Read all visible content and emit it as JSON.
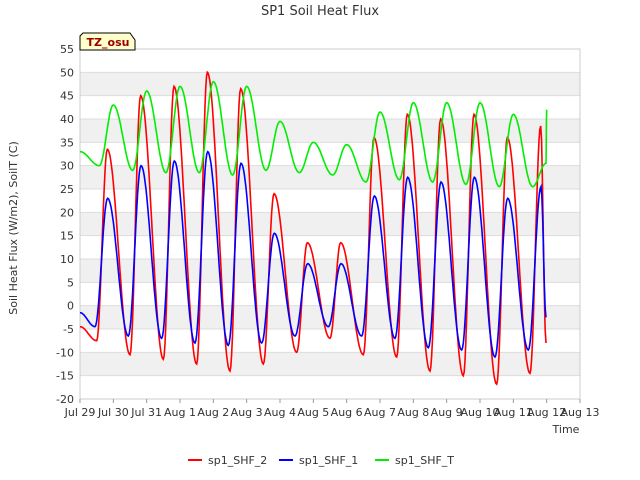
{
  "chart_data": {
    "type": "line",
    "title": "SP1 Soil Heat Flux",
    "xlabel": "Time",
    "ylabel": "Soil Heat Flux (W/m2), SoilT (C)",
    "annotation": "TZ_osu",
    "ylim": [
      -20,
      55
    ],
    "yticks": [
      -20,
      -15,
      -10,
      -5,
      0,
      5,
      10,
      15,
      20,
      25,
      30,
      35,
      40,
      45,
      50,
      55
    ],
    "xlim": [
      0,
      15
    ],
    "xtick_labels": [
      "Jul 29",
      "Jul 30",
      "Jul 31",
      "Aug 1",
      "Aug 2",
      "Aug 3",
      "Aug 4",
      "Aug 5",
      "Aug 6",
      "Aug 7",
      "Aug 8",
      "Aug 9",
      "Aug 10",
      "Aug 11",
      "Aug 12",
      "Aug 13"
    ],
    "grid": true,
    "legend_position": "bottom",
    "series": [
      {
        "name": "sp1_SHF_2",
        "color": "#ff0000",
        "days": [
          {
            "min": -7.5,
            "max": 33.5
          },
          {
            "min": -10.5,
            "max": 45
          },
          {
            "min": -11.5,
            "max": 47
          },
          {
            "min": -12.5,
            "max": 50
          },
          {
            "min": -14,
            "max": 46.5
          },
          {
            "min": -12.5,
            "max": 24
          },
          {
            "min": -10,
            "max": 13.5
          },
          {
            "min": -7,
            "max": 13.5
          },
          {
            "min": -10.5,
            "max": 36
          },
          {
            "min": -11,
            "max": 41
          },
          {
            "min": -14,
            "max": 40
          },
          {
            "min": -15,
            "max": 41
          },
          {
            "min": -16.8,
            "max": 36
          },
          {
            "min": -14.5,
            "max": 38.5
          }
        ],
        "end_value": -8
      },
      {
        "name": "sp1_SHF_1",
        "color": "#0000ff",
        "days": [
          {
            "min": -4.5,
            "max": 23
          },
          {
            "min": -6.5,
            "max": 30
          },
          {
            "min": -7,
            "max": 31
          },
          {
            "min": -8,
            "max": 33
          },
          {
            "min": -8.5,
            "max": 30.5
          },
          {
            "min": -8,
            "max": 15.5
          },
          {
            "min": -6.5,
            "max": 9
          },
          {
            "min": -4.5,
            "max": 9
          },
          {
            "min": -6.5,
            "max": 23.5
          },
          {
            "min": -7,
            "max": 27.5
          },
          {
            "min": -9,
            "max": 26.5
          },
          {
            "min": -9.5,
            "max": 27.5
          },
          {
            "min": -11,
            "max": 23
          },
          {
            "min": -9.5,
            "max": 25.5
          }
        ],
        "end_value": -2.5
      },
      {
        "name": "sp1_SHF_T",
        "color": "#00ee00",
        "days": [
          {
            "min": 30,
            "max": 43
          },
          {
            "min": 29,
            "max": 46
          },
          {
            "min": 28.5,
            "max": 47
          },
          {
            "min": 28.5,
            "max": 48
          },
          {
            "min": 28,
            "max": 47
          },
          {
            "min": 29,
            "max": 39.5
          },
          {
            "min": 28.5,
            "max": 35
          },
          {
            "min": 28,
            "max": 34.5
          },
          {
            "min": 26.5,
            "max": 41.5
          },
          {
            "min": 27,
            "max": 43.5
          },
          {
            "min": 26.5,
            "max": 43.5
          },
          {
            "min": 26,
            "max": 43.5
          },
          {
            "min": 25.5,
            "max": 41
          },
          {
            "min": 25.5,
            "max": 42
          }
        ],
        "start_value": 33,
        "end_value": 30.5
      }
    ]
  }
}
